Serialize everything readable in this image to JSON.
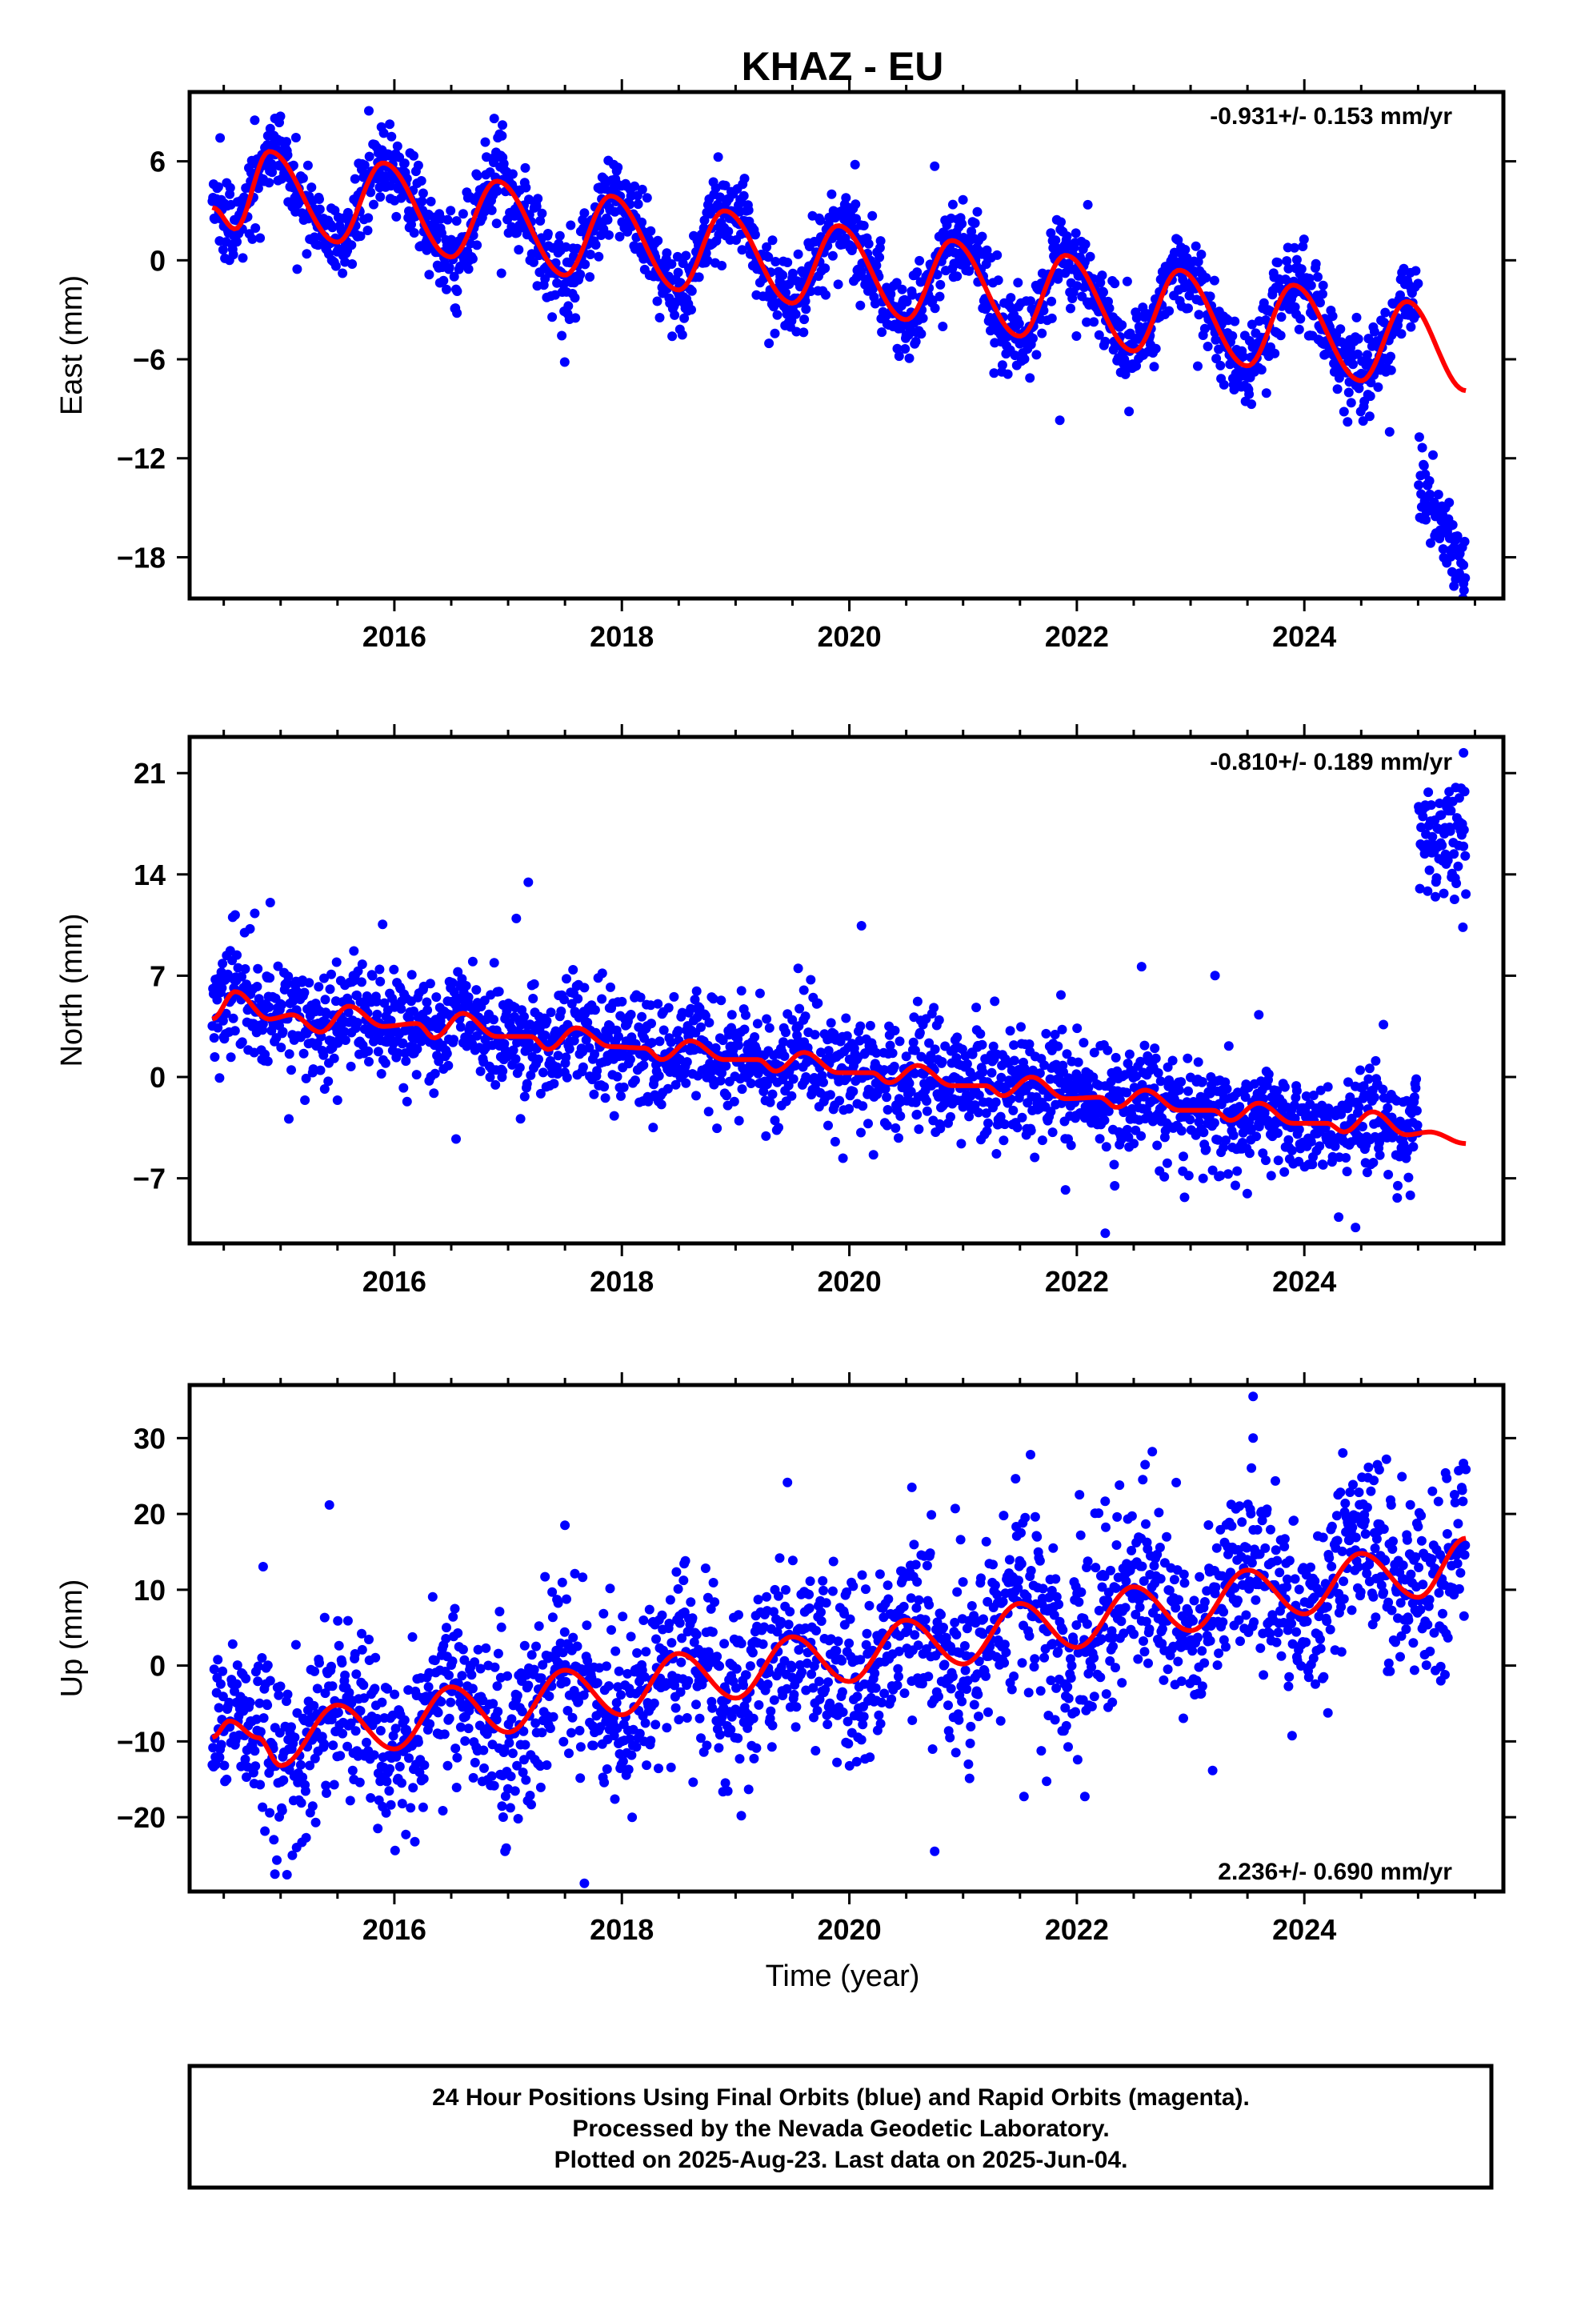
{
  "title": "KHAZ - EU",
  "xlabel": "Time (year)",
  "footer": {
    "line1": "24 Hour Positions Using Final Orbits (blue) and Rapid Orbits (magenta).",
    "line2": "Processed by the Nevada Geodetic Laboratory.",
    "line3": "Plotted on 2025-Aug-23. Last data on 2025-Jun-04."
  },
  "colors": {
    "data": "#0000ff",
    "model": "#ff0000",
    "frame": "#000000"
  },
  "chart_data": [
    {
      "type": "scatter",
      "component": "east",
      "ylabel": "East (mm)",
      "rate_label": "-0.931+/- 0.153 mm/yr",
      "xlim": [
        2014.2,
        2025.75
      ],
      "ylim": [
        -20.5,
        10.2
      ],
      "xticks": [
        2016,
        2018,
        2020,
        2022,
        2024
      ],
      "xtick_labels": [
        "2016",
        "2018",
        "2020",
        "2022",
        "2024"
      ],
      "yticks": [
        6,
        0,
        -6,
        -12,
        -18
      ],
      "ytick_labels": [
        "6",
        "0",
        "−6",
        "−12",
        "−18"
      ],
      "data_range": [
        2014.4,
        2025.42
      ],
      "model_range": [
        2014.4,
        2025.42
      ],
      "model_points": [
        [
          2014.4,
          3.2
        ],
        [
          2014.6,
          1.9
        ],
        [
          2014.9,
          6.6
        ],
        [
          2015.5,
          1.1
        ],
        [
          2015.9,
          5.9
        ],
        [
          2016.5,
          0.2
        ],
        [
          2016.9,
          4.8
        ],
        [
          2017.5,
          -0.9
        ],
        [
          2017.9,
          3.9
        ],
        [
          2018.5,
          -1.8
        ],
        [
          2018.9,
          3.0
        ],
        [
          2019.5,
          -2.6
        ],
        [
          2019.9,
          2.1
        ],
        [
          2020.5,
          -3.6
        ],
        [
          2020.9,
          1.2
        ],
        [
          2021.5,
          -4.6
        ],
        [
          2021.9,
          0.3
        ],
        [
          2022.5,
          -5.5
        ],
        [
          2022.9,
          -0.6
        ],
        [
          2023.5,
          -6.4
        ],
        [
          2023.9,
          -1.5
        ],
        [
          2024.5,
          -7.3
        ],
        [
          2024.9,
          -2.5
        ],
        [
          2025.42,
          -7.9
        ]
      ],
      "offsets": [
        {
          "start": 2025.0,
          "end": 2025.42,
          "from": -13.2,
          "to": -18.8
        }
      ],
      "scatter_sd": 1.2,
      "outliers": [
        [
          2014.95,
          8.6
        ],
        [
          2016.95,
          8.2
        ],
        [
          2020.05,
          5.8
        ],
        [
          2020.75,
          5.7
        ],
        [
          2021.85,
          -9.7
        ],
        [
          2024.75,
          -10.4
        ],
        [
          2014.55,
          0.0
        ],
        [
          2016.55,
          -3.2
        ],
        [
          2025.4,
          -19.6
        ]
      ]
    },
    {
      "type": "scatter",
      "component": "north",
      "ylabel": "North (mm)",
      "rate_label": "-0.810+/- 0.189 mm/yr",
      "xlim": [
        2014.2,
        2025.75
      ],
      "ylim": [
        -11.5,
        23.5
      ],
      "xticks": [
        2016,
        2018,
        2020,
        2022,
        2024
      ],
      "xtick_labels": [
        "2016",
        "2018",
        "2020",
        "2022",
        "2024"
      ],
      "yticks": [
        21,
        14,
        7,
        0,
        -7
      ],
      "ytick_labels": [
        "21",
        "14",
        "7",
        "0",
        "−7"
      ],
      "data_range": [
        2014.4,
        2025.42
      ],
      "model_range": [
        2014.4,
        2025.42
      ],
      "model_points": [
        [
          2014.4,
          4.0
        ],
        [
          2014.6,
          5.9
        ],
        [
          2014.9,
          4.0
        ],
        [
          2015.1,
          4.3
        ],
        [
          2015.35,
          3.1
        ],
        [
          2015.6,
          4.9
        ],
        [
          2015.9,
          3.5
        ],
        [
          2016.2,
          3.7
        ],
        [
          2016.35,
          2.7
        ],
        [
          2016.6,
          4.4
        ],
        [
          2016.9,
          2.8
        ],
        [
          2017.2,
          2.8
        ],
        [
          2017.35,
          1.9
        ],
        [
          2017.6,
          3.4
        ],
        [
          2017.9,
          2.1
        ],
        [
          2018.2,
          2.0
        ],
        [
          2018.35,
          1.2
        ],
        [
          2018.6,
          2.5
        ],
        [
          2018.9,
          1.2
        ],
        [
          2019.2,
          1.2
        ],
        [
          2019.35,
          0.4
        ],
        [
          2019.6,
          1.7
        ],
        [
          2019.9,
          0.3
        ],
        [
          2020.2,
          0.3
        ],
        [
          2020.35,
          -0.4
        ],
        [
          2020.6,
          0.8
        ],
        [
          2020.9,
          -0.6
        ],
        [
          2021.2,
          -0.6
        ],
        [
          2021.35,
          -1.3
        ],
        [
          2021.6,
          0.0
        ],
        [
          2021.9,
          -1.5
        ],
        [
          2022.2,
          -1.4
        ],
        [
          2022.35,
          -2.1
        ],
        [
          2022.6,
          -0.9
        ],
        [
          2022.9,
          -2.3
        ],
        [
          2023.2,
          -2.3
        ],
        [
          2023.35,
          -3.0
        ],
        [
          2023.6,
          -1.8
        ],
        [
          2023.9,
          -3.2
        ],
        [
          2024.2,
          -3.2
        ],
        [
          2024.35,
          -3.8
        ],
        [
          2024.6,
          -2.4
        ],
        [
          2024.9,
          -4.0
        ],
        [
          2025.1,
          -3.8
        ],
        [
          2025.42,
          -4.6
        ]
      ],
      "offsets": [
        {
          "start": 2025.0,
          "end": 2025.42,
          "from": 17.0,
          "to": 16.8
        }
      ],
      "scatter_sd": 1.8,
      "outliers": [
        [
          2014.6,
          11.2
        ],
        [
          2025.4,
          22.4
        ],
        [
          2022.25,
          -10.8
        ],
        [
          2024.45,
          -10.4
        ],
        [
          2017.9,
          6.2
        ],
        [
          2019.6,
          6.0
        ],
        [
          2023.6,
          4.3
        ],
        [
          2015.5,
          -1.6
        ],
        [
          2021.9,
          -7.8
        ]
      ]
    },
    {
      "type": "scatter",
      "component": "up",
      "ylabel": "Up (mm)",
      "rate_label": "2.236+/- 0.690 mm/yr",
      "xlim": [
        2014.2,
        2025.75
      ],
      "ylim": [
        -29.8,
        37.0
      ],
      "xticks": [
        2016,
        2018,
        2020,
        2022,
        2024
      ],
      "xtick_labels": [
        "2016",
        "2018",
        "2020",
        "2022",
        "2024"
      ],
      "yticks": [
        30,
        20,
        10,
        0,
        -10,
        -20
      ],
      "ytick_labels": [
        "30",
        "20",
        "10",
        "0",
        "−10",
        "−20"
      ],
      "data_range": [
        2014.4,
        2025.42
      ],
      "model_range": [
        2014.4,
        2025.42
      ],
      "model_points": [
        [
          2014.4,
          -9.5
        ],
        [
          2014.55,
          -7.3
        ],
        [
          2014.8,
          -9.5
        ],
        [
          2015.0,
          -13.2
        ],
        [
          2015.5,
          -5.2
        ],
        [
          2016.0,
          -11.0
        ],
        [
          2016.5,
          -2.8
        ],
        [
          2017.0,
          -8.8
        ],
        [
          2017.5,
          -0.6
        ],
        [
          2018.0,
          -6.5
        ],
        [
          2018.5,
          1.6
        ],
        [
          2019.0,
          -4.3
        ],
        [
          2019.5,
          3.8
        ],
        [
          2020.0,
          -2.1
        ],
        [
          2020.5,
          6.0
        ],
        [
          2021.0,
          0.2
        ],
        [
          2021.5,
          8.2
        ],
        [
          2022.0,
          2.4
        ],
        [
          2022.5,
          10.4
        ],
        [
          2023.0,
          4.6
        ],
        [
          2023.5,
          12.6
        ],
        [
          2024.0,
          6.8
        ],
        [
          2024.5,
          14.8
        ],
        [
          2025.0,
          9.0
        ],
        [
          2025.42,
          16.8
        ]
      ],
      "offsets": [],
      "scatter_sd": 5.5,
      "outliers": [
        [
          2023.55,
          35.5
        ],
        [
          2023.55,
          30.0
        ],
        [
          2014.95,
          -27.5
        ],
        [
          2020.75,
          -24.5
        ],
        [
          2022.6,
          26.5
        ],
        [
          2020.55,
          23.5
        ],
        [
          2017.5,
          18.5
        ],
        [
          2019.05,
          -19.8
        ],
        [
          2025.2,
          -2.0
        ]
      ]
    }
  ]
}
